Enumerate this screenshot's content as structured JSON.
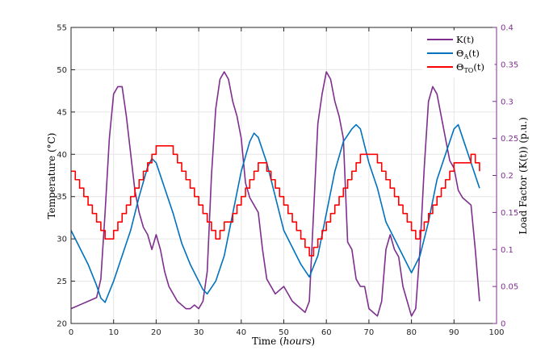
{
  "chart_data": {
    "type": "line",
    "xlabel_main": "Time (",
    "xlabel_italic": "hours",
    "xlabel_end": ")",
    "ylabel_left": "Temperature (°C)",
    "ylabel_right": "Load Factor (K(t)) (p.u.)",
    "xlim": [
      0,
      100
    ],
    "ylim_left": [
      20,
      55
    ],
    "ylim_right": [
      0,
      0.4
    ],
    "x_ticks": [
      "0",
      "10",
      "20",
      "30",
      "40",
      "50",
      "60",
      "70",
      "80",
      "90",
      "100"
    ],
    "y_left_ticks": [
      "20",
      "25",
      "30",
      "35",
      "40",
      "45",
      "50",
      "55"
    ],
    "y_right_ticks": [
      "0",
      "0.05",
      "0.1",
      "0.15",
      "0.2",
      "0.25",
      "0.3",
      "0.35",
      "0.4"
    ],
    "grid": true,
    "legend_position": "top-right",
    "colors": {
      "K": "#7e2f8e",
      "theta_A": "#0072bd",
      "theta_TO": "#ff0000",
      "right_axis": "#7e2f8e"
    },
    "series": [
      {
        "id": "K",
        "name": "K(t)",
        "legend_main": "K(t)",
        "axis": "right",
        "x": [
          0,
          2,
          4,
          6,
          7,
          8,
          9,
          10,
          11,
          12,
          13,
          14,
          15,
          16,
          17,
          18,
          19,
          20,
          21,
          22,
          23,
          24,
          25,
          26,
          27,
          28,
          29,
          30,
          31,
          32,
          33,
          34,
          35,
          36,
          37,
          38,
          39,
          40,
          41,
          42,
          43,
          44,
          45,
          46,
          47,
          48,
          50,
          52,
          54,
          55,
          56,
          57,
          58,
          59,
          60,
          61,
          62,
          63,
          64,
          65,
          66,
          67,
          68,
          69,
          70,
          71,
          72,
          73,
          74,
          75,
          76,
          77,
          78,
          79,
          80,
          81,
          82,
          83,
          84,
          85,
          86,
          87,
          88,
          89,
          90,
          91,
          92,
          93,
          94,
          95,
          96
        ],
        "y": [
          0.02,
          0.025,
          0.03,
          0.035,
          0.06,
          0.15,
          0.25,
          0.31,
          0.32,
          0.32,
          0.28,
          0.23,
          0.18,
          0.15,
          0.13,
          0.12,
          0.1,
          0.12,
          0.1,
          0.07,
          0.05,
          0.04,
          0.03,
          0.025,
          0.02,
          0.02,
          0.025,
          0.02,
          0.03,
          0.07,
          0.2,
          0.29,
          0.33,
          0.34,
          0.33,
          0.3,
          0.28,
          0.25,
          0.19,
          0.17,
          0.16,
          0.15,
          0.1,
          0.06,
          0.05,
          0.04,
          0.05,
          0.03,
          0.02,
          0.015,
          0.03,
          0.15,
          0.27,
          0.31,
          0.34,
          0.33,
          0.3,
          0.28,
          0.25,
          0.11,
          0.1,
          0.06,
          0.05,
          0.05,
          0.02,
          0.015,
          0.01,
          0.03,
          0.1,
          0.12,
          0.1,
          0.09,
          0.05,
          0.03,
          0.01,
          0.02,
          0.1,
          0.21,
          0.3,
          0.32,
          0.31,
          0.28,
          0.25,
          0.22,
          0.21,
          0.18,
          0.17,
          0.165,
          0.16,
          0.1,
          0.03
        ]
      },
      {
        "id": "theta_A",
        "name": "ΘA(t)",
        "legend_main": "Θ",
        "legend_sub": "A",
        "legend_end": "(t)",
        "axis": "left",
        "x": [
          0,
          2,
          4,
          6,
          7,
          8,
          10,
          12,
          14,
          16,
          18,
          19,
          20,
          22,
          24,
          26,
          28,
          30,
          31,
          32,
          34,
          36,
          38,
          40,
          42,
          43,
          44,
          46,
          48,
          50,
          52,
          54,
          56,
          58,
          60,
          62,
          64,
          66,
          67,
          68,
          70,
          72,
          74,
          76,
          78,
          80,
          82,
          84,
          86,
          88,
          90,
          91,
          92,
          94,
          96
        ],
        "y": [
          31,
          29,
          27,
          24.5,
          23,
          22.5,
          25,
          28,
          31,
          35,
          38.5,
          39.5,
          39,
          36,
          33,
          29.5,
          27,
          25,
          24,
          23.5,
          25,
          28,
          33,
          38,
          41.5,
          42.5,
          42,
          39,
          35,
          31,
          29,
          27,
          25.5,
          28,
          33,
          38,
          41.5,
          43,
          43.5,
          43,
          39,
          36,
          32,
          30,
          28,
          26,
          28,
          32,
          37,
          40,
          43,
          43.5,
          42,
          39,
          36
        ]
      },
      {
        "id": "theta_TO",
        "name": "ΘTO(t)",
        "legend_main": "Θ",
        "legend_sub": "TO",
        "legend_end": "(t)",
        "axis": "left",
        "step": true,
        "x": [
          0,
          1,
          2,
          3,
          4,
          5,
          6,
          7,
          8,
          10,
          11,
          12,
          13,
          14,
          15,
          16,
          17,
          18,
          19,
          20,
          24,
          25,
          26,
          27,
          28,
          29,
          30,
          31,
          32,
          33,
          34,
          35,
          36,
          38,
          39,
          40,
          41,
          42,
          43,
          44,
          46,
          47,
          48,
          49,
          50,
          51,
          52,
          53,
          54,
          55,
          56,
          57,
          58,
          59,
          60,
          61,
          62,
          63,
          64,
          65,
          66,
          67,
          68,
          72,
          73,
          74,
          75,
          76,
          77,
          78,
          79,
          80,
          81,
          82,
          83,
          84,
          85,
          86,
          87,
          88,
          89,
          90,
          94,
          95,
          96
        ],
        "y": [
          38,
          37,
          36,
          35,
          34,
          33,
          32,
          31,
          30,
          31,
          32,
          33,
          34,
          35,
          36,
          37,
          38,
          39,
          40,
          41,
          40,
          39,
          38,
          37,
          36,
          35,
          34,
          33,
          32,
          31,
          30,
          31,
          32,
          33,
          34,
          35,
          36,
          37,
          38,
          39,
          38,
          37,
          36,
          35,
          34,
          33,
          32,
          31,
          30,
          29,
          28,
          29,
          30,
          31,
          32,
          33,
          34,
          35,
          36,
          37,
          38,
          39,
          40,
          39,
          38,
          37,
          36,
          35,
          34,
          33,
          32,
          31,
          30,
          31,
          32,
          33,
          34,
          35,
          36,
          37,
          38,
          39,
          40,
          39,
          38
        ]
      }
    ]
  }
}
